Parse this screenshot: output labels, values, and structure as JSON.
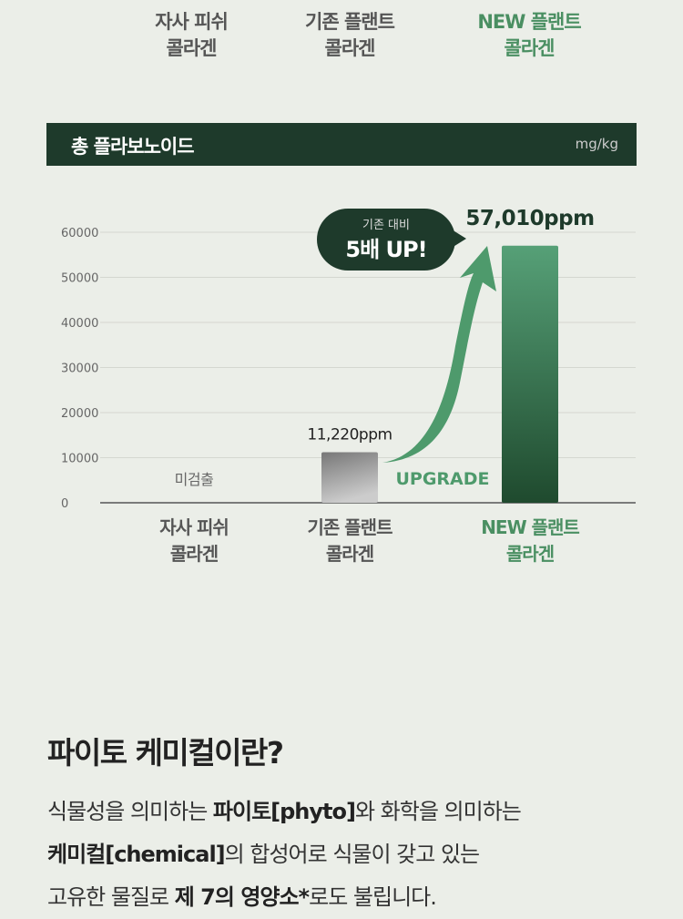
{
  "top_categories": [
    {
      "l1": "자사 피쉬",
      "l2": "콜라겐"
    },
    {
      "l1": "기존 플랜트",
      "l2": "콜라겐"
    },
    {
      "l1": "NEW 플랜트",
      "l2": "콜라겐"
    }
  ],
  "header": {
    "title": "총 플라보노이드",
    "unit": "mg/kg"
  },
  "chart_data": {
    "type": "bar",
    "title": "총 플라보노이드",
    "ylabel": "mg/kg",
    "ylim": [
      0,
      60000
    ],
    "yticks": [
      "0",
      "10000",
      "20000",
      "30000",
      "40000",
      "50000",
      "60000"
    ],
    "grid": true,
    "categories": [
      {
        "l1": "자사 피쉬",
        "l2": "콜라겐"
      },
      {
        "l1": "기존 플랜트",
        "l2": "콜라겐"
      },
      {
        "l1": "NEW 플랜트",
        "l2": "콜라겐"
      }
    ],
    "values": [
      0,
      11220,
      57010
    ],
    "data_labels": [
      "미검출",
      "11,220ppm",
      "57,010ppm"
    ],
    "colors": [
      "#888888",
      "#888888",
      "#2f6f48"
    ],
    "highlight_color": "#4a8f62",
    "annotation": {
      "line1": "기존 대비",
      "line2": "5배 UP!",
      "arrow_label": "UPGRADE"
    }
  },
  "section": {
    "title": "파이토 케미컬이란?",
    "p1a": "식물성을 의미하는 ",
    "p1b": "파이토[phyto]",
    "p1c": "와 화학을 의미하는",
    "p2a": "케미컬[chemical]",
    "p2b": "의 합성어로 식물이 갖고 있는",
    "p3a": "고유한 물질로 ",
    "p3b": "제 7의 영양소*",
    "p3c": "로도 불립니다."
  }
}
